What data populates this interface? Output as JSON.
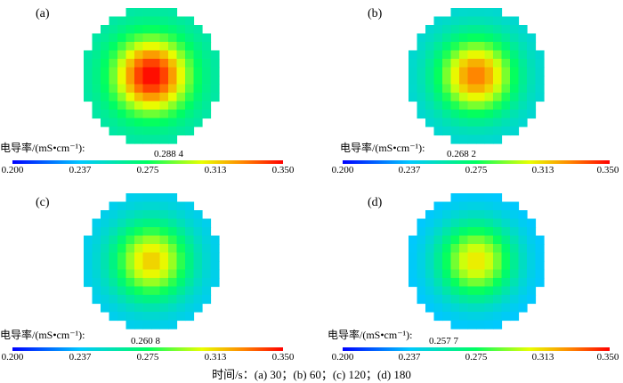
{
  "colorbar": {
    "title": "电导率/(mS•cm⁻¹):",
    "ticks": [
      "0.200",
      "0.237",
      "0.275",
      "0.313",
      "0.350"
    ],
    "min": 0.2,
    "max": 0.35,
    "colors": [
      "#0000ff",
      "#00c8ff",
      "#00ff60",
      "#e8ff00",
      "#ff8800",
      "#ff0000"
    ]
  },
  "caption": "时间/s：(a) 30；(b) 60；(c) 120；(d) 180",
  "chart_data": [
    {
      "type": "heatmap",
      "label": "(a)",
      "value_label": "0.288 4",
      "value": 0.2884,
      "center_peak": 0.35,
      "edge_value": 0.255
    },
    {
      "type": "heatmap",
      "label": "(b)",
      "value_label": "0.268 2",
      "value": 0.2682,
      "center_peak": 0.33,
      "edge_value": 0.245
    },
    {
      "type": "heatmap",
      "label": "(c)",
      "value_label": "0.260 8",
      "value": 0.2608,
      "center_peak": 0.315,
      "edge_value": 0.238
    },
    {
      "type": "heatmap",
      "label": "(d)",
      "value_label": "0.257 7",
      "value": 0.2577,
      "center_peak": 0.31,
      "edge_value": 0.234
    }
  ]
}
